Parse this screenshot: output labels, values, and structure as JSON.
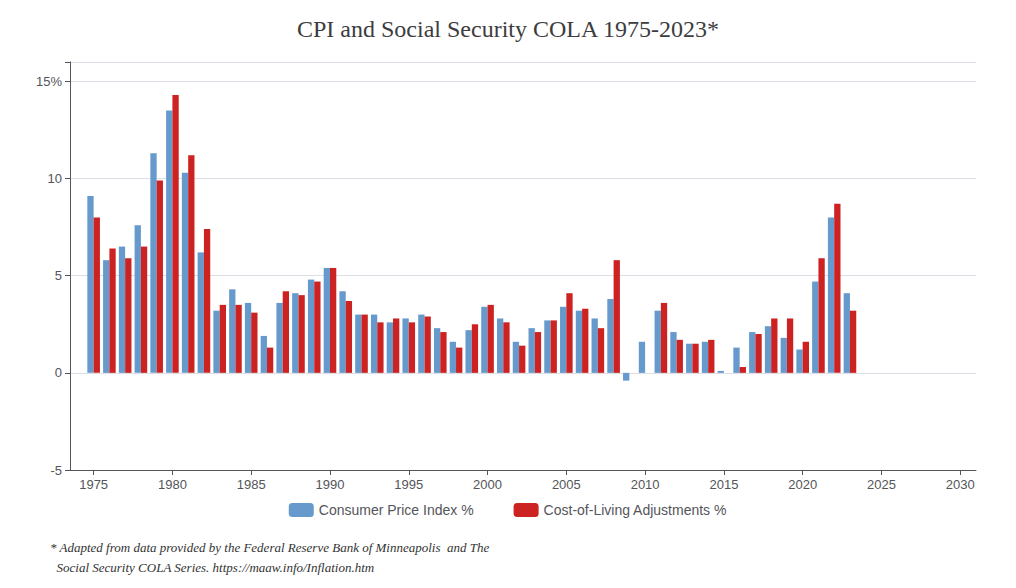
{
  "chart_data": {
    "type": "bar",
    "title": "CPI and Social Security COLA 1975-2023*",
    "x": [
      1975,
      1976,
      1977,
      1978,
      1979,
      1980,
      1981,
      1982,
      1983,
      1984,
      1985,
      1986,
      1987,
      1988,
      1989,
      1990,
      1991,
      1992,
      1993,
      1994,
      1995,
      1996,
      1997,
      1998,
      1999,
      2000,
      2001,
      2002,
      2003,
      2004,
      2005,
      2006,
      2007,
      2008,
      2009,
      2010,
      2011,
      2012,
      2013,
      2014,
      2015,
      2016,
      2017,
      2018,
      2019,
      2020,
      2021,
      2022,
      2023
    ],
    "series": [
      {
        "name": "Consumer Price Index %",
        "color": "#6699cc",
        "values": [
          9.1,
          5.8,
          6.5,
          7.6,
          11.3,
          13.5,
          10.3,
          6.2,
          3.2,
          4.3,
          3.6,
          1.9,
          3.6,
          4.1,
          4.8,
          5.4,
          4.2,
          3.0,
          3.0,
          2.6,
          2.8,
          3.0,
          2.3,
          1.6,
          2.2,
          3.4,
          2.8,
          1.6,
          2.3,
          2.7,
          3.4,
          3.2,
          2.8,
          3.8,
          -0.4,
          1.6,
          3.2,
          2.1,
          1.5,
          1.6,
          0.1,
          1.3,
          2.1,
          2.4,
          1.8,
          1.2,
          4.7,
          8.0,
          4.1
        ]
      },
      {
        "name": "Cost-of-Living Adjustments %",
        "color": "#cc2222",
        "values": [
          8.0,
          6.4,
          5.9,
          6.5,
          9.9,
          14.3,
          11.2,
          7.4,
          3.5,
          3.5,
          3.1,
          1.3,
          4.2,
          4.0,
          4.7,
          5.4,
          3.7,
          3.0,
          2.6,
          2.8,
          2.6,
          2.9,
          2.1,
          1.3,
          2.5,
          3.5,
          2.6,
          1.4,
          2.1,
          2.7,
          4.1,
          3.3,
          2.3,
          5.8,
          0.0,
          0.0,
          3.6,
          1.7,
          1.5,
          1.7,
          0.0,
          0.3,
          2.0,
          2.8,
          2.8,
          1.6,
          5.9,
          8.7,
          3.2
        ]
      }
    ],
    "xlim": [
      1973.5,
      2031
    ],
    "xticks": [
      1975,
      1980,
      1985,
      1990,
      1995,
      2000,
      2005,
      2010,
      2015,
      2020,
      2025,
      2030
    ],
    "ylim": [
      -5,
      16
    ],
    "yticks": [
      -5,
      0,
      5,
      10,
      {
        "value": 15,
        "label": "15%"
      }
    ],
    "grid": true,
    "legend": "bottom",
    "annotations": [
      "* Adapted from data provided by the Federal Reserve Bank of Minneapolis  and The",
      "  Social Security COLA Series. https://maaw.info/Inflation.htm"
    ]
  }
}
